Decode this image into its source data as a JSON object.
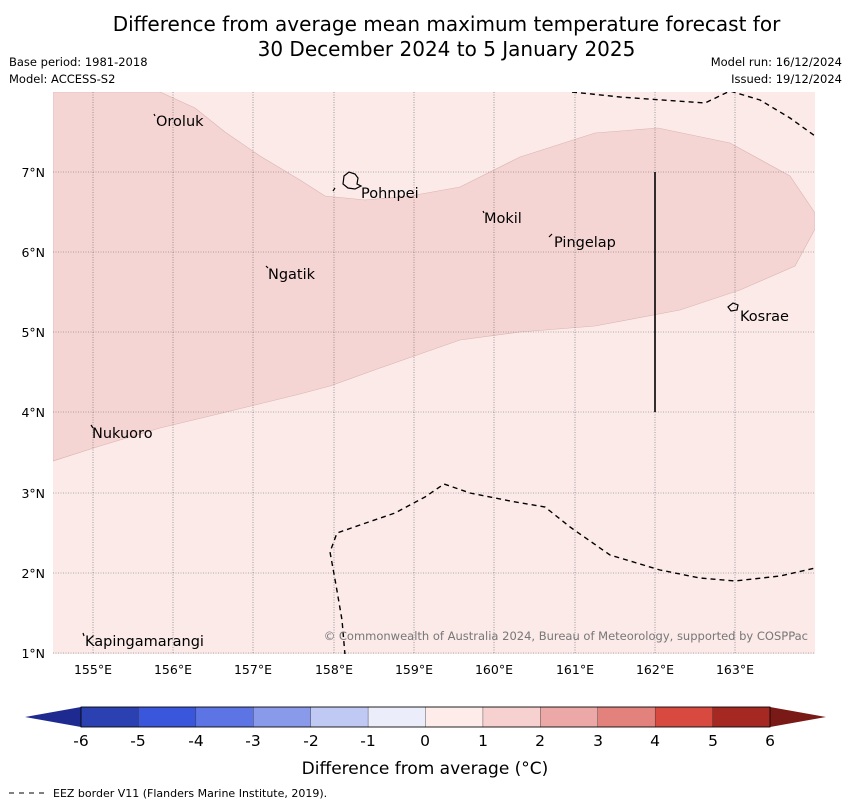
{
  "header": {
    "title_line1": "Difference from average mean maximum temperature forecast for",
    "title_line2": "30 December 2024 to 5 January 2025",
    "base_period": "Base period: 1981-2018",
    "model": "Model: ACCESS-S2",
    "model_run": "Model run: 16/12/2024",
    "issued": "Issued: 19/12/2024"
  },
  "map": {
    "lat_labels": [
      "7°N",
      "6°N",
      "5°N",
      "4°N",
      "3°N",
      "2°N",
      "1°N"
    ],
    "lon_labels": [
      "155°E",
      "156°E",
      "157°E",
      "158°E",
      "159°E",
      "160°E",
      "161°E",
      "162°E",
      "163°E"
    ],
    "places": {
      "oroluk": "Oroluk",
      "pohnpei": "Pohnpei",
      "mokil": "Mokil",
      "pingelap": "Pingelap",
      "ngatik": "Ngatik",
      "kosrae": "Kosrae",
      "nukuoro": "Nukuoro",
      "kapingamarangi": "Kapingamarangi"
    },
    "copyright": "© Commonwealth of Australia 2024, Bureau of Meteorology, supported by COSPPac",
    "colors": {
      "anomaly_0_to_1": "#fbeae8",
      "anomaly_1_to_2": "#f5d5d3"
    }
  },
  "colorbar": {
    "tick_labels": [
      "-6",
      "-5",
      "-4",
      "-3",
      "-2",
      "-1",
      "0",
      "1",
      "2",
      "3",
      "4",
      "5",
      "6"
    ],
    "label": "Difference from average (°C)",
    "colors": [
      "#1e2a8f",
      "#2b40b1",
      "#3a56db",
      "#5d74e4",
      "#8a9aeb",
      "#c0c8f4",
      "#ebedfb",
      "#fdecea",
      "#f6d1cf",
      "#eba8a6",
      "#e3827d",
      "#d84a40",
      "#a62822",
      "#7a1a16"
    ]
  },
  "legend": {
    "eez_text": "EEZ border V11 (Flanders Marine Institute, 2019)."
  }
}
